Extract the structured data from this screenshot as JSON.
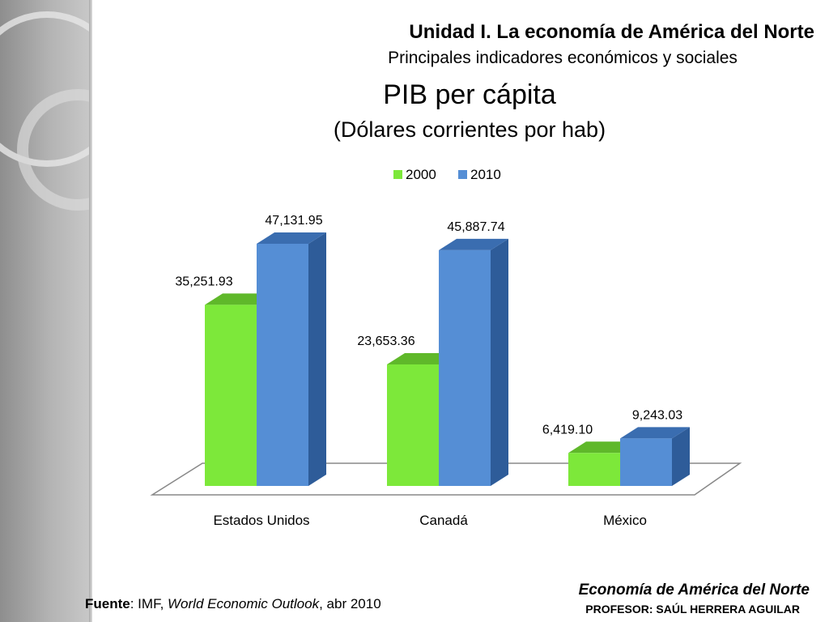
{
  "header": {
    "title": "Unidad I. La economía de América del Norte",
    "subtitle": "Principales indicadores económicos y sociales"
  },
  "footer": {
    "source_label": "Fuente",
    "source_prefix": ": IMF, ",
    "source_publication": "World Economic Outlook",
    "source_suffix": ", abr 2010",
    "course": "Economía de América del Norte",
    "professor": "PROFESOR: SAÚL HERRERA AGUILAR"
  },
  "colors": {
    "series_2000": "#7de83a",
    "series_2010": "#558ed5"
  },
  "chart_data": {
    "type": "bar",
    "title": "PIB per cápita",
    "subtitle": "(Dólares corrientes por hab)",
    "categories": [
      "Estados Unidos",
      "Canadá",
      "México"
    ],
    "series": [
      {
        "name": "2000",
        "values": [
          35251.93,
          23653.36,
          6419.1
        ],
        "labels": [
          "35,251.93",
          "23,653.36",
          "6,419.10"
        ]
      },
      {
        "name": "2010",
        "values": [
          47131.95,
          45887.74,
          9243.03
        ],
        "labels": [
          "47,131.95",
          "45,887.74",
          "9,243.03"
        ]
      }
    ],
    "legend_position": "top",
    "grid": false,
    "ylim": [
      0,
      47131.95
    ]
  }
}
